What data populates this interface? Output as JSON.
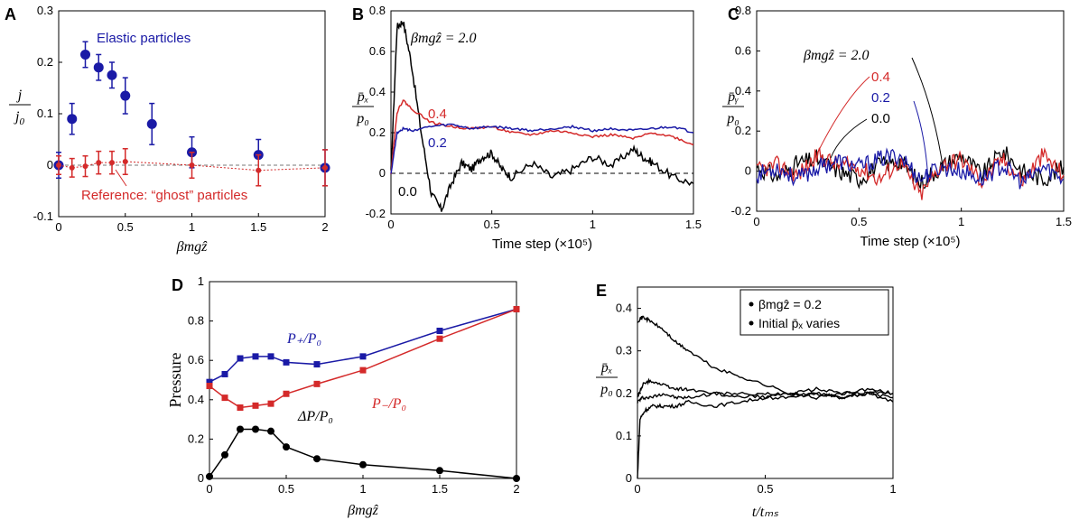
{
  "figure": {
    "panels": [
      "A",
      "B",
      "C",
      "D",
      "E"
    ]
  },
  "chart_data": [
    {
      "panel": "A",
      "type": "scatter",
      "xlabel": "βmgẑ",
      "ylabel_num": "j",
      "ylabel_den": "j",
      "ylabel_den_sub": "0",
      "xlim": [
        0,
        2.0
      ],
      "ylim": [
        -0.1,
        0.3
      ],
      "xticks": [
        "0",
        "0.5",
        "1",
        "1.5",
        "2"
      ],
      "yticks": [
        "-0.1",
        "0",
        "0.1",
        "0.2",
        "0.3"
      ],
      "colors": {
        "elastic": "#1a1aa6",
        "ghost": "#d42a2a"
      },
      "annotations": [
        "Elastic particles",
        "Reference: “ghost” particles"
      ],
      "series": [
        {
          "name": "Elastic particles",
          "x": [
            0,
            0.1,
            0.2,
            0.3,
            0.4,
            0.5,
            0.7,
            1.0,
            1.5,
            2.0
          ],
          "y": [
            0.0,
            0.09,
            0.215,
            0.19,
            0.175,
            0.135,
            0.08,
            0.025,
            0.02,
            -0.005
          ],
          "err": [
            0.025,
            0.03,
            0.025,
            0.025,
            0.025,
            0.035,
            0.04,
            0.03,
            0.03,
            0.035
          ]
        },
        {
          "name": "Reference: “ghost” particles",
          "x": [
            0,
            0.1,
            0.2,
            0.3,
            0.4,
            0.5,
            1.0,
            1.5,
            2.0
          ],
          "y": [
            0.0,
            -0.005,
            -0.002,
            0.005,
            0.005,
            0.007,
            0.0,
            -0.01,
            -0.005
          ],
          "err": [
            0.018,
            0.018,
            0.02,
            0.022,
            0.022,
            0.025,
            0.025,
            0.03,
            0.035
          ]
        }
      ]
    },
    {
      "panel": "B",
      "type": "line",
      "xlabel": "Time step (×10⁵)",
      "ylabel_num": "p̄ₓ",
      "ylabel_den": "p₀",
      "xlim": [
        0,
        1.5
      ],
      "ylim": [
        -0.2,
        0.8
      ],
      "xticks": [
        "0",
        "0.5",
        "1",
        "1.5"
      ],
      "yticks": [
        "-0.2",
        "0",
        "0.2",
        "0.4",
        "0.6",
        "0.8"
      ],
      "series_labels": [
        "βmgẑ = 2.0",
        "0.4",
        "0.2",
        "0.0"
      ],
      "series": [
        {
          "name": "0.0",
          "color": "#000000",
          "x": [
            0,
            0.03,
            0.06,
            0.1,
            0.15,
            0.2,
            0.25,
            0.3,
            0.35,
            0.4,
            0.45,
            0.5,
            0.55,
            0.6,
            0.7,
            0.8,
            0.9,
            1.0,
            1.1,
            1.2,
            1.25,
            1.3,
            1.4,
            1.5
          ],
          "y": [
            0,
            0.72,
            0.75,
            0.55,
            0.2,
            -0.1,
            -0.18,
            -0.05,
            0.05,
            0.02,
            0.08,
            0.1,
            0.02,
            -0.02,
            0.05,
            -0.02,
            0.02,
            0.08,
            0.04,
            0.12,
            0.08,
            0.05,
            -0.02,
            -0.05
          ]
        },
        {
          "name": "0.4",
          "color": "#d42a2a",
          "x": [
            0,
            0.03,
            0.06,
            0.1,
            0.2,
            0.3,
            0.4,
            0.5,
            0.6,
            0.7,
            0.8,
            0.9,
            1.0,
            1.1,
            1.2,
            1.3,
            1.4,
            1.5
          ],
          "y": [
            0,
            0.3,
            0.36,
            0.32,
            0.25,
            0.23,
            0.22,
            0.23,
            0.2,
            0.19,
            0.21,
            0.2,
            0.18,
            0.19,
            0.17,
            0.2,
            0.18,
            0.14
          ]
        },
        {
          "name": "0.2",
          "color": "#1a1aa6",
          "x": [
            0,
            0.03,
            0.06,
            0.1,
            0.2,
            0.3,
            0.4,
            0.5,
            0.6,
            0.7,
            0.8,
            0.9,
            1.0,
            1.1,
            1.2,
            1.3,
            1.4,
            1.5
          ],
          "y": [
            0,
            0.2,
            0.22,
            0.21,
            0.23,
            0.24,
            0.22,
            0.23,
            0.22,
            0.21,
            0.22,
            0.23,
            0.21,
            0.22,
            0.21,
            0.22,
            0.23,
            0.2
          ]
        }
      ]
    },
    {
      "panel": "C",
      "type": "line",
      "xlabel": "Time step (×10⁵)",
      "ylabel_num": "p̄ᵧ",
      "ylabel_den": "p₀",
      "xlim": [
        0,
        1.5
      ],
      "ylim": [
        -0.2,
        0.8
      ],
      "xticks": [
        "0",
        "0.5",
        "1",
        "1.5"
      ],
      "yticks": [
        "-0.2",
        "0",
        "0.2",
        "0.4",
        "0.6",
        "0.8"
      ],
      "series_labels": [
        "βmgẑ = 2.0",
        "0.4",
        "0.2",
        "0.0"
      ],
      "series": [
        {
          "name": "0.0",
          "color": "#000000",
          "x": [
            0,
            0.1,
            0.2,
            0.3,
            0.4,
            0.5,
            0.6,
            0.7,
            0.8,
            0.9,
            1.0,
            1.1,
            1.2,
            1.3,
            1.4,
            1.5
          ],
          "y": [
            0.02,
            -0.03,
            0.04,
            0.06,
            0.0,
            -0.04,
            0.03,
            0.05,
            -0.06,
            0.02,
            0.08,
            -0.02,
            0.1,
            0.0,
            -0.04,
            0.02
          ]
        },
        {
          "name": "0.4",
          "color": "#d42a2a",
          "x": [
            0,
            0.1,
            0.2,
            0.3,
            0.4,
            0.5,
            0.6,
            0.7,
            0.8,
            0.9,
            1.0,
            1.1,
            1.2,
            1.3,
            1.4,
            1.5
          ],
          "y": [
            0.0,
            0.03,
            -0.02,
            0.08,
            0.03,
            0.02,
            -0.04,
            0.05,
            -0.12,
            0.03,
            0.06,
            -0.05,
            0.06,
            -0.05,
            0.08,
            -0.02
          ]
        },
        {
          "name": "0.2",
          "color": "#1a1aa6",
          "x": [
            0,
            0.1,
            0.2,
            0.3,
            0.4,
            0.5,
            0.6,
            0.7,
            0.8,
            0.9,
            1.0,
            1.1,
            1.2,
            1.3,
            1.4,
            1.5
          ],
          "y": [
            -0.02,
            0.02,
            -0.04,
            0.02,
            0.05,
            0.02,
            0.06,
            0.08,
            -0.04,
            0.02,
            0.0,
            -0.04,
            0.03,
            -0.06,
            0.02,
            -0.04
          ]
        }
      ]
    },
    {
      "panel": "D",
      "type": "line",
      "xlabel": "βmgẑ",
      "ylabel": "Pressure",
      "xlim": [
        0,
        2.0
      ],
      "ylim": [
        0,
        1.0
      ],
      "xticks": [
        "0",
        "0.5",
        "1",
        "1.5",
        "2"
      ],
      "yticks": [
        "0",
        "0.2",
        "0.4",
        "0.6",
        "0.8",
        "1"
      ],
      "series": [
        {
          "name": "P₊/P₀",
          "color": "#1a1aa6",
          "marker": "square",
          "x": [
            0,
            0.1,
            0.2,
            0.3,
            0.4,
            0.5,
            0.7,
            1.0,
            1.5,
            2.0
          ],
          "y": [
            0.49,
            0.53,
            0.61,
            0.62,
            0.62,
            0.59,
            0.58,
            0.62,
            0.75,
            0.86
          ]
        },
        {
          "name": "P₋/P₀",
          "color": "#d42a2a",
          "marker": "square",
          "x": [
            0,
            0.1,
            0.2,
            0.3,
            0.4,
            0.5,
            0.7,
            1.0,
            1.5,
            2.0
          ],
          "y": [
            0.47,
            0.41,
            0.36,
            0.37,
            0.38,
            0.43,
            0.48,
            0.55,
            0.71,
            0.86
          ]
        },
        {
          "name": "ΔP/P₀",
          "color": "#000000",
          "marker": "circle",
          "x": [
            0,
            0.1,
            0.2,
            0.3,
            0.4,
            0.5,
            0.7,
            1.0,
            1.5,
            2.0
          ],
          "y": [
            0.01,
            0.12,
            0.25,
            0.25,
            0.24,
            0.16,
            0.1,
            0.07,
            0.04,
            0.0
          ]
        }
      ]
    },
    {
      "panel": "E",
      "type": "line",
      "xlabel": "t/tₘₛ",
      "ylabel_num": "p̄ₓ",
      "ylabel_den": "p₀",
      "xlim": [
        0,
        1.0
      ],
      "ylim": [
        0,
        0.45
      ],
      "xticks": [
        "0",
        "0.5",
        "1"
      ],
      "yticks": [
        "0",
        "0.1",
        "0.2",
        "0.3",
        "0.4"
      ],
      "legend": [
        "βmgẑ = 0.2",
        "Initial p̄ₓ varies"
      ],
      "series": [
        {
          "x": [
            0,
            0.02,
            0.05,
            0.1,
            0.15,
            0.2,
            0.3,
            0.4,
            0.5,
            0.6,
            0.7,
            0.8,
            0.9,
            1.0
          ],
          "y": [
            0.37,
            0.38,
            0.37,
            0.35,
            0.32,
            0.3,
            0.26,
            0.24,
            0.22,
            0.2,
            0.21,
            0.2,
            0.2,
            0.19
          ]
        },
        {
          "x": [
            0,
            0.02,
            0.05,
            0.1,
            0.15,
            0.2,
            0.3,
            0.4,
            0.5,
            0.6,
            0.7,
            0.8,
            0.9,
            1.0
          ],
          "y": [
            0.19,
            0.22,
            0.23,
            0.22,
            0.21,
            0.21,
            0.2,
            0.2,
            0.19,
            0.19,
            0.2,
            0.19,
            0.2,
            0.2
          ]
        },
        {
          "x": [
            0,
            0.02,
            0.05,
            0.1,
            0.15,
            0.2,
            0.3,
            0.4,
            0.5,
            0.6,
            0.7,
            0.8,
            0.9,
            1.0
          ],
          "y": [
            0.18,
            0.19,
            0.19,
            0.2,
            0.19,
            0.19,
            0.2,
            0.19,
            0.2,
            0.2,
            0.19,
            0.2,
            0.21,
            0.2
          ]
        },
        {
          "x": [
            0,
            0.01,
            0.03,
            0.06,
            0.1,
            0.15,
            0.2,
            0.3,
            0.4,
            0.5,
            0.6,
            0.7,
            0.8,
            0.9,
            1.0
          ],
          "y": [
            0.0,
            0.14,
            0.16,
            0.17,
            0.17,
            0.17,
            0.18,
            0.17,
            0.18,
            0.19,
            0.2,
            0.2,
            0.19,
            0.2,
            0.18
          ]
        }
      ]
    }
  ]
}
